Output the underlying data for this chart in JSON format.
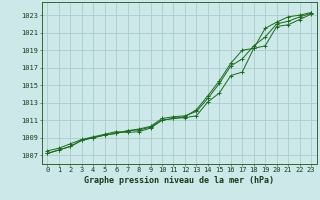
{
  "title": "Graphe pression niveau de la mer (hPa)",
  "background_color": "#cce8e8",
  "grid_color": "#aacccc",
  "line_color": "#1a6b1a",
  "xlim": [
    -0.5,
    23.5
  ],
  "ylim": [
    1006.0,
    1024.5
  ],
  "yticks": [
    1007,
    1009,
    1011,
    1013,
    1015,
    1017,
    1019,
    1021,
    1023
  ],
  "xticks": [
    0,
    1,
    2,
    3,
    4,
    5,
    6,
    7,
    8,
    9,
    10,
    11,
    12,
    13,
    14,
    15,
    16,
    17,
    18,
    19,
    20,
    21,
    22,
    23
  ],
  "series": [
    [
      1007.2,
      1007.6,
      1008.0,
      1008.7,
      1009.0,
      1009.3,
      1009.5,
      1009.8,
      1009.9,
      1010.2,
      1011.0,
      1011.2,
      1011.3,
      1011.5,
      1013.1,
      1014.1,
      1016.1,
      1016.5,
      1019.2,
      1019.5,
      1021.7,
      1021.9,
      1022.5,
      1023.1
    ],
    [
      1007.2,
      1007.6,
      1008.0,
      1008.7,
      1009.0,
      1009.3,
      1009.5,
      1009.8,
      1010.0,
      1010.3,
      1011.2,
      1011.4,
      1011.5,
      1012.0,
      1013.5,
      1015.2,
      1017.2,
      1018.0,
      1019.5,
      1020.5,
      1022.0,
      1022.3,
      1022.8,
      1023.2
    ],
    [
      1007.5,
      1007.8,
      1008.3,
      1008.8,
      1009.1,
      1009.4,
      1009.7,
      1009.6,
      1009.7,
      1010.1,
      1011.0,
      1011.2,
      1011.4,
      1012.2,
      1013.8,
      1015.5,
      1017.5,
      1019.0,
      1019.2,
      1021.5,
      1022.2,
      1022.8,
      1023.0,
      1023.3
    ]
  ],
  "label_fontsize": 5.0,
  "xlabel_fontsize": 6.0,
  "spine_color": "#336633",
  "tick_color": "#336633"
}
